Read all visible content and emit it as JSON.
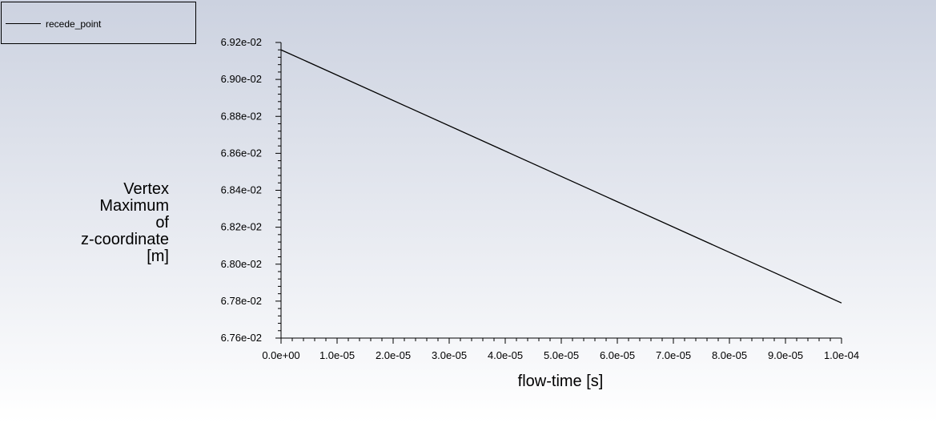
{
  "legend": {
    "label": "recede_point"
  },
  "chart_data": {
    "type": "line",
    "xlabel": "flow-time [s]",
    "ylabel_lines": [
      "Vertex",
      "Maximum",
      "of",
      "z-coordinate",
      "[m]"
    ],
    "xlim": [
      0,
      0.0001
    ],
    "ylim": [
      0.0676,
      0.0692
    ],
    "x_ticks": [
      {
        "value": 0,
        "label": "0.0e+00"
      },
      {
        "value": 1e-05,
        "label": "1.0e-05"
      },
      {
        "value": 2e-05,
        "label": "2.0e-05"
      },
      {
        "value": 3e-05,
        "label": "3.0e-05"
      },
      {
        "value": 4e-05,
        "label": "4.0e-05"
      },
      {
        "value": 5e-05,
        "label": "5.0e-05"
      },
      {
        "value": 6e-05,
        "label": "6.0e-05"
      },
      {
        "value": 7e-05,
        "label": "7.0e-05"
      },
      {
        "value": 8e-05,
        "label": "8.0e-05"
      },
      {
        "value": 9e-05,
        "label": "9.0e-05"
      },
      {
        "value": 0.0001,
        "label": "1.0e-04"
      }
    ],
    "y_ticks": [
      {
        "value": 0.0676,
        "label": "6.76e-02"
      },
      {
        "value": 0.0678,
        "label": "6.78e-02"
      },
      {
        "value": 0.068,
        "label": "6.80e-02"
      },
      {
        "value": 0.0682,
        "label": "6.82e-02"
      },
      {
        "value": 0.0684,
        "label": "6.84e-02"
      },
      {
        "value": 0.0686,
        "label": "6.86e-02"
      },
      {
        "value": 0.0688,
        "label": "6.88e-02"
      },
      {
        "value": 0.069,
        "label": "6.90e-02"
      },
      {
        "value": 0.0692,
        "label": "6.92e-02"
      }
    ],
    "x_minor_per_major": 4,
    "y_minor_per_major": 4,
    "grid": false,
    "legend_position": "top-left",
    "series": [
      {
        "name": "recede_point",
        "color": "#000000",
        "x": [
          0,
          0.0001
        ],
        "y": [
          0.06916,
          0.06779
        ]
      }
    ]
  },
  "colors": {
    "background_top": "#ccd2e0",
    "background_bottom": "#ffffff",
    "axis": "#000000",
    "text": "#000000"
  }
}
